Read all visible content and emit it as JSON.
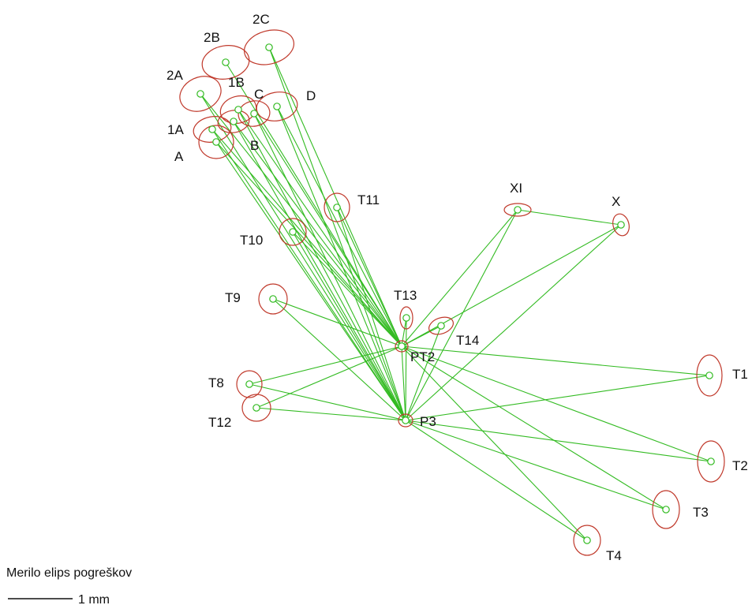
{
  "colors": {
    "background": "#ffffff",
    "observation_line": "#33bb22",
    "error_ellipse": "#c0392b",
    "point_marker": "#33bb22",
    "text": "#111111"
  },
  "points": [
    {
      "id": "2C",
      "label": "2C"
    },
    {
      "id": "2B",
      "label": "2B"
    },
    {
      "id": "2A",
      "label": "2A"
    },
    {
      "id": "1B",
      "label": "1B"
    },
    {
      "id": "C",
      "label": "C"
    },
    {
      "id": "D",
      "label": "D"
    },
    {
      "id": "1A",
      "label": "1A"
    },
    {
      "id": "B",
      "label": "B"
    },
    {
      "id": "A",
      "label": "A"
    },
    {
      "id": "T11",
      "label": "T11"
    },
    {
      "id": "T10",
      "label": "T10"
    },
    {
      "id": "XI",
      "label": "XI"
    },
    {
      "id": "X",
      "label": "X"
    },
    {
      "id": "T9",
      "label": "T9"
    },
    {
      "id": "T13",
      "label": "T13"
    },
    {
      "id": "T14",
      "label": "T14"
    },
    {
      "id": "PT2",
      "label": "PT2"
    },
    {
      "id": "T1",
      "label": "T1"
    },
    {
      "id": "T8",
      "label": "T8"
    },
    {
      "id": "T12",
      "label": "T12"
    },
    {
      "id": "P3",
      "label": "P3"
    },
    {
      "id": "T2",
      "label": "T2"
    },
    {
      "id": "T3",
      "label": "T3"
    },
    {
      "id": "T4",
      "label": "T4"
    }
  ],
  "observations": [
    [
      "PT2",
      "2C"
    ],
    [
      "PT2",
      "2B"
    ],
    [
      "PT2",
      "2A"
    ],
    [
      "PT2",
      "1B"
    ],
    [
      "PT2",
      "C"
    ],
    [
      "PT2",
      "D"
    ],
    [
      "PT2",
      "1A"
    ],
    [
      "PT2",
      "B"
    ],
    [
      "PT2",
      "A"
    ],
    [
      "P3",
      "2C"
    ],
    [
      "P3",
      "2A"
    ],
    [
      "P3",
      "1B"
    ],
    [
      "P3",
      "C"
    ],
    [
      "P3",
      "D"
    ],
    [
      "P3",
      "1A"
    ],
    [
      "P3",
      "B"
    ],
    [
      "P3",
      "A"
    ],
    [
      "PT2",
      "T11"
    ],
    [
      "PT2",
      "T10"
    ],
    [
      "P3",
      "T11"
    ],
    [
      "P3",
      "T10"
    ],
    [
      "PT2",
      "T9"
    ],
    [
      "P3",
      "T9"
    ],
    [
      "PT2",
      "T13"
    ],
    [
      "P3",
      "T13"
    ],
    [
      "PT2",
      "T14"
    ],
    [
      "P3",
      "T14"
    ],
    [
      "PT2",
      "XI"
    ],
    [
      "P3",
      "XI"
    ],
    [
      "PT2",
      "X"
    ],
    [
      "P3",
      "X"
    ],
    [
      "XI",
      "X"
    ],
    [
      "PT2",
      "T1"
    ],
    [
      "P3",
      "T1"
    ],
    [
      "PT2",
      "T8"
    ],
    [
      "P3",
      "T8"
    ],
    [
      "PT2",
      "T12"
    ],
    [
      "P3",
      "T12"
    ],
    [
      "PT2",
      "T2"
    ],
    [
      "P3",
      "T2"
    ],
    [
      "PT2",
      "T3"
    ],
    [
      "P3",
      "T3"
    ],
    [
      "PT2",
      "T4"
    ],
    [
      "P3",
      "T4"
    ],
    [
      "PT2",
      "P3"
    ]
  ],
  "legend": {
    "title": "Merilo elips pogreškov",
    "scale_label": "1 mm"
  }
}
